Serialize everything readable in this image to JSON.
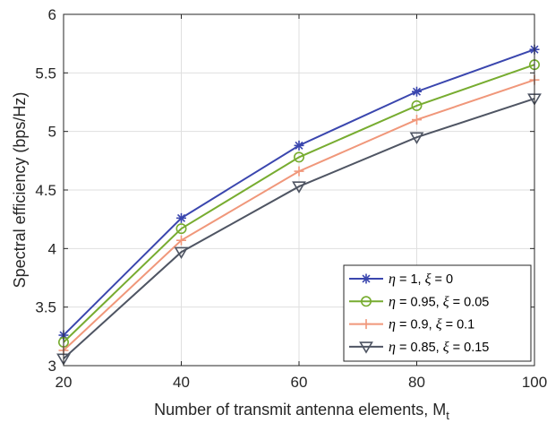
{
  "chart_data": {
    "type": "line",
    "xlabel": "Number of transmit antenna elements, M",
    "xlabel_sub": "t",
    "ylabel": "Spectral efficiency (bps/Hz)",
    "x": [
      20,
      40,
      60,
      80,
      100
    ],
    "xlim": [
      20,
      100
    ],
    "ylim": [
      3,
      6
    ],
    "xticks": [
      20,
      40,
      60,
      80,
      100
    ],
    "yticks": [
      3,
      3.5,
      4,
      4.5,
      5,
      5.5,
      6
    ],
    "xtick_labels": [
      "20",
      "40",
      "60",
      "80",
      "100"
    ],
    "ytick_labels": [
      "3",
      "3.5",
      "4",
      "4.5",
      "5",
      "5.5",
      "6"
    ],
    "grid": true,
    "legend_position": "bottom-right",
    "series": [
      {
        "eta": "1",
        "xi": "0",
        "color": "#3a46ae",
        "marker": "asterisk",
        "values": [
          3.26,
          4.26,
          4.88,
          5.34,
          5.7
        ]
      },
      {
        "eta": "0.95",
        "xi": "0.05",
        "color": "#77ac30",
        "marker": "circle",
        "values": [
          3.2,
          4.17,
          4.78,
          5.22,
          5.57
        ]
      },
      {
        "eta": "0.9",
        "xi": "0.1",
        "color": "#f0977a",
        "marker": "plus",
        "values": [
          3.13,
          4.07,
          4.66,
          5.1,
          5.44
        ]
      },
      {
        "eta": "0.85",
        "xi": "0.15",
        "color": "#4f5563",
        "marker": "triangle-down",
        "values": [
          3.06,
          3.97,
          4.53,
          4.95,
          5.28
        ]
      }
    ],
    "legend_symbols": {
      "eta": "η",
      "xi": "ξ"
    }
  }
}
